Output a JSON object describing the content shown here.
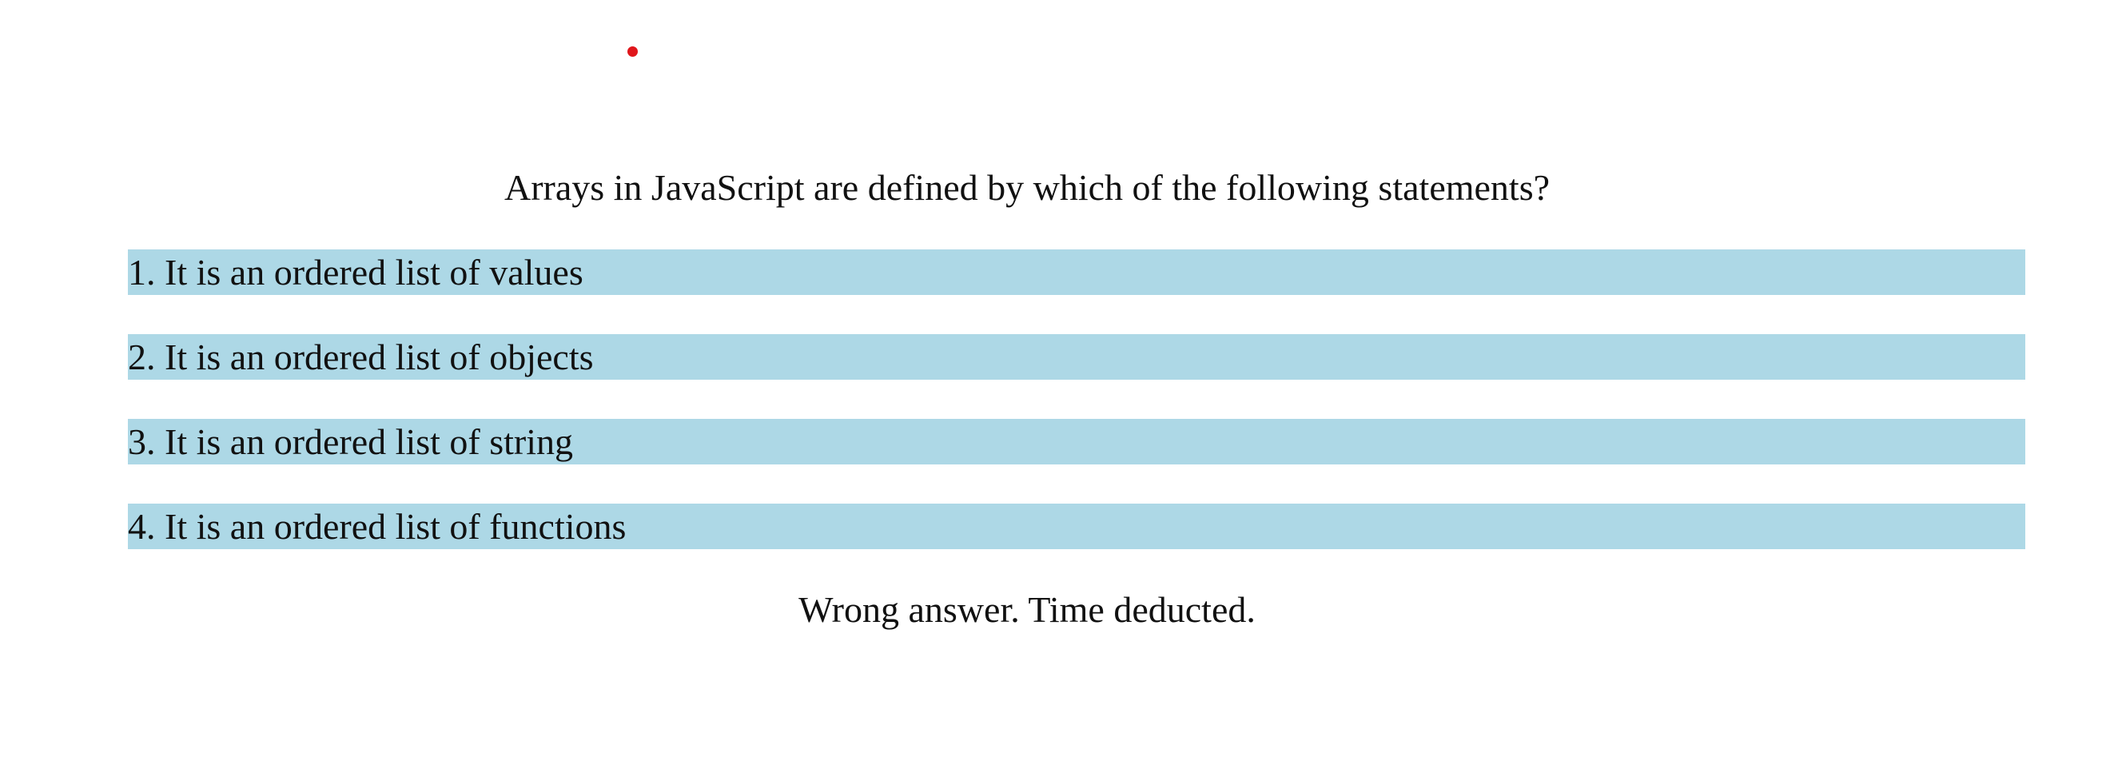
{
  "quiz": {
    "question": "Arrays in JavaScript are defined by which of the following statements?",
    "answers": [
      {
        "label": "1. It is an ordered list of values"
      },
      {
        "label": "2. It is an ordered list of objects"
      },
      {
        "label": "3. It is an ordered list of string"
      },
      {
        "label": "4. It is an ordered list of functions"
      }
    ],
    "feedback": "Wrong answer. Time deducted."
  },
  "colors": {
    "answer_background": "#add8e6",
    "cursor_dot": "#e0161b",
    "text": "#111111",
    "page_background": "#ffffff"
  }
}
